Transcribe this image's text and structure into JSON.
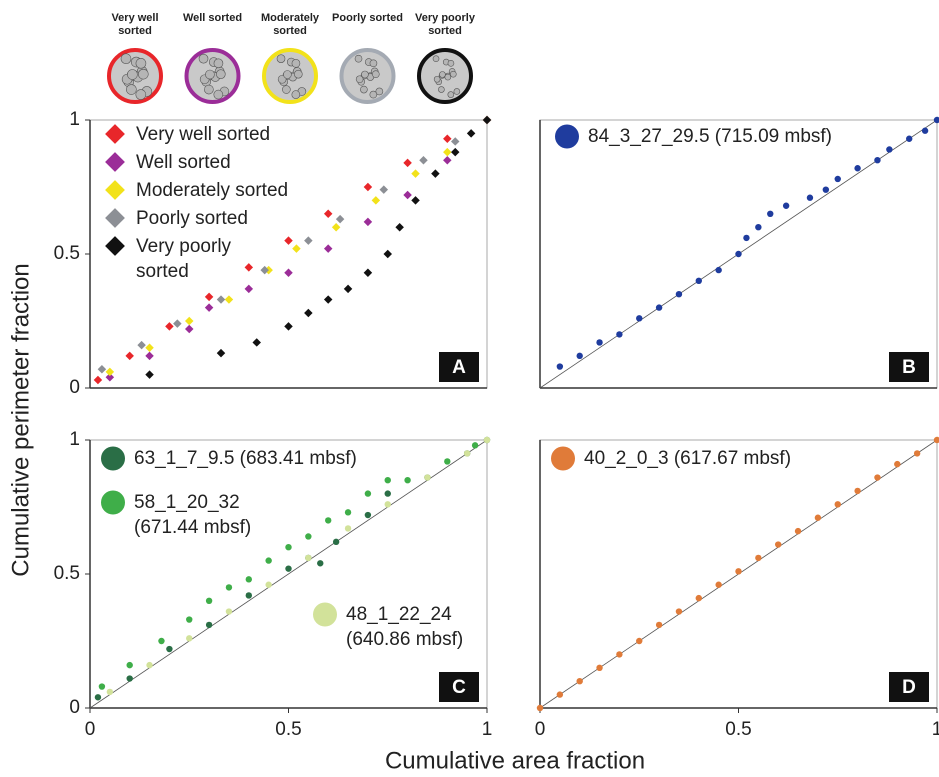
{
  "figure": {
    "ylabel": "Cumulative perimeter fraction",
    "xlabel": "Cumulative area fraction",
    "sorting_classes": [
      {
        "label": "Very well sorted",
        "color": "#e8262a"
      },
      {
        "label": "Well sorted",
        "color": "#9b2d98"
      },
      {
        "label": "Moderately sorted",
        "color": "#f2e21a"
      },
      {
        "label": "Poorly sorted",
        "color": "#a4aab3"
      },
      {
        "label": "Very poorly sorted",
        "color": "#111111"
      }
    ]
  },
  "chart_data": [
    {
      "type": "scatter",
      "panel_label": "A",
      "marker": "diamond",
      "diagonal": false,
      "xlim": [
        0,
        1
      ],
      "ylim": [
        0,
        1
      ],
      "yticks": [
        0,
        0.5,
        1
      ],
      "series": [
        {
          "name": "Very well sorted",
          "color": "#e8262a",
          "x": [
            0.02,
            0.1,
            0.2,
            0.3,
            0.4,
            0.5,
            0.6,
            0.7,
            0.8,
            0.9,
            1
          ],
          "y": [
            0.03,
            0.12,
            0.23,
            0.34,
            0.45,
            0.55,
            0.65,
            0.75,
            0.84,
            0.93,
            1
          ]
        },
        {
          "name": "Well sorted",
          "color": "#9b2d98",
          "x": [
            0.05,
            0.15,
            0.25,
            0.3,
            0.4,
            0.5,
            0.6,
            0.7,
            0.8,
            0.9,
            1
          ],
          "y": [
            0.04,
            0.12,
            0.22,
            0.3,
            0.37,
            0.43,
            0.52,
            0.62,
            0.72,
            0.85,
            1
          ]
        },
        {
          "name": "Moderately sorted",
          "color": "#f2e21a",
          "x": [
            0.05,
            0.15,
            0.25,
            0.35,
            0.45,
            0.52,
            0.62,
            0.72,
            0.82,
            0.9,
            1
          ],
          "y": [
            0.06,
            0.15,
            0.25,
            0.33,
            0.44,
            0.52,
            0.6,
            0.7,
            0.8,
            0.88,
            1
          ]
        },
        {
          "name": "Poorly sorted",
          "color": "#8c8f95",
          "x": [
            0.03,
            0.13,
            0.22,
            0.33,
            0.44,
            0.55,
            0.63,
            0.74,
            0.84,
            0.92,
            1
          ],
          "y": [
            0.07,
            0.16,
            0.24,
            0.33,
            0.44,
            0.55,
            0.63,
            0.74,
            0.85,
            0.92,
            1
          ]
        },
        {
          "name": "Very poorly sorted",
          "color": "#111111",
          "x": [
            0.15,
            0.33,
            0.42,
            0.5,
            0.55,
            0.6,
            0.65,
            0.7,
            0.75,
            0.78,
            0.82,
            0.87,
            0.92,
            0.96,
            1
          ],
          "y": [
            0.05,
            0.13,
            0.17,
            0.23,
            0.28,
            0.33,
            0.37,
            0.43,
            0.5,
            0.6,
            0.7,
            0.8,
            0.88,
            0.95,
            1
          ]
        }
      ]
    },
    {
      "type": "scatter",
      "panel_label": "B",
      "marker": "circle",
      "diagonal": true,
      "xlim": [
        0,
        1
      ],
      "ylim": [
        0,
        1
      ],
      "series": [
        {
          "name": "84_3_27_29.5 (715.09 mbsf)",
          "color": "#1f3c9e",
          "x": [
            0.05,
            0.1,
            0.15,
            0.2,
            0.25,
            0.3,
            0.35,
            0.4,
            0.45,
            0.5,
            0.52,
            0.55,
            0.58,
            0.62,
            0.68,
            0.72,
            0.75,
            0.8,
            0.85,
            0.88,
            0.93,
            0.97,
            1
          ],
          "y": [
            0.08,
            0.12,
            0.17,
            0.2,
            0.26,
            0.3,
            0.35,
            0.4,
            0.44,
            0.5,
            0.56,
            0.6,
            0.65,
            0.68,
            0.71,
            0.74,
            0.78,
            0.82,
            0.85,
            0.89,
            0.93,
            0.96,
            1
          ]
        }
      ]
    },
    {
      "type": "scatter",
      "panel_label": "C",
      "marker": "circle",
      "diagonal": true,
      "xlim": [
        0,
        1
      ],
      "ylim": [
        0,
        1
      ],
      "xticks": [
        0,
        0.5,
        1
      ],
      "yticks": [
        0,
        0.5,
        1
      ],
      "series": [
        {
          "name": "63_1_7_9.5 (683.41 mbsf)",
          "color": "#2a6e46",
          "x": [
            0.02,
            0.1,
            0.2,
            0.3,
            0.4,
            0.5,
            0.55,
            0.58,
            0.62,
            0.7,
            0.75,
            0.85,
            0.95,
            1
          ],
          "y": [
            0.04,
            0.11,
            0.22,
            0.31,
            0.42,
            0.52,
            0.56,
            0.54,
            0.62,
            0.72,
            0.8,
            0.86,
            0.95,
            1
          ]
        },
        {
          "name": "58_1_20_32 (671.44 mbsf)",
          "color": "#3fae49",
          "x": [
            0.03,
            0.1,
            0.18,
            0.25,
            0.3,
            0.35,
            0.4,
            0.45,
            0.5,
            0.55,
            0.6,
            0.65,
            0.7,
            0.75,
            0.8,
            0.9,
            0.97
          ],
          "y": [
            0.08,
            0.16,
            0.25,
            0.33,
            0.4,
            0.45,
            0.48,
            0.55,
            0.6,
            0.64,
            0.7,
            0.73,
            0.8,
            0.85,
            0.85,
            0.92,
            0.98
          ]
        },
        {
          "name": "48_1_22_24 (640.86 mbsf)",
          "color": "#d2e29a",
          "x": [
            0.05,
            0.15,
            0.25,
            0.35,
            0.45,
            0.55,
            0.65,
            0.75,
            0.85,
            0.95,
            1
          ],
          "y": [
            0.06,
            0.16,
            0.26,
            0.36,
            0.46,
            0.56,
            0.67,
            0.76,
            0.86,
            0.95,
            1
          ]
        }
      ]
    },
    {
      "type": "scatter",
      "panel_label": "D",
      "marker": "circle",
      "diagonal": true,
      "xlim": [
        0,
        1
      ],
      "ylim": [
        0,
        1
      ],
      "xticks": [
        0,
        0.5,
        1
      ],
      "series": [
        {
          "name": "40_2_0_3 (617.67 mbsf)",
          "color": "#e07b39",
          "x": [
            0,
            0.05,
            0.1,
            0.15,
            0.2,
            0.25,
            0.3,
            0.35,
            0.4,
            0.45,
            0.5,
            0.55,
            0.6,
            0.65,
            0.7,
            0.75,
            0.8,
            0.85,
            0.9,
            0.95,
            1
          ],
          "y": [
            0,
            0.05,
            0.1,
            0.15,
            0.2,
            0.25,
            0.31,
            0.36,
            0.41,
            0.46,
            0.51,
            0.56,
            0.61,
            0.66,
            0.71,
            0.76,
            0.81,
            0.86,
            0.91,
            0.95,
            1
          ]
        }
      ]
    }
  ]
}
